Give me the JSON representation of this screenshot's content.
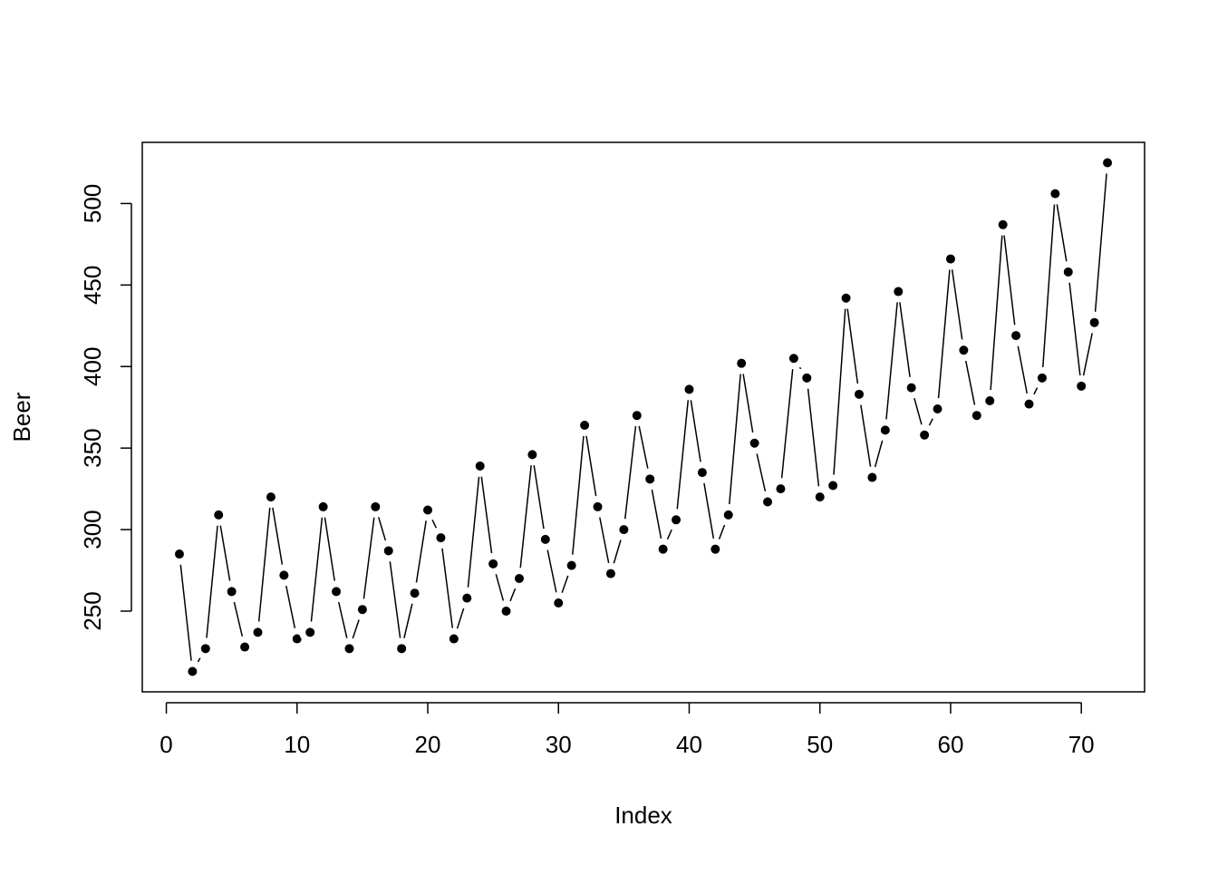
{
  "chart_data": {
    "type": "line",
    "markers": true,
    "color": "#000000",
    "x_label": "Index",
    "y_label": "Beer",
    "x": [
      1,
      2,
      3,
      4,
      5,
      6,
      7,
      8,
      9,
      10,
      11,
      12,
      13,
      14,
      15,
      16,
      17,
      18,
      19,
      20,
      21,
      22,
      23,
      24,
      25,
      26,
      27,
      28,
      29,
      30,
      31,
      32,
      33,
      34,
      35,
      36,
      37,
      38,
      39,
      40,
      41,
      42,
      43,
      44,
      45,
      46,
      47,
      48,
      49,
      50,
      51,
      52,
      53,
      54,
      55,
      56,
      57,
      58,
      59,
      60,
      61,
      62,
      63,
      64,
      65,
      66,
      67,
      68,
      69,
      70,
      71,
      72
    ],
    "values": [
      285,
      213,
      227,
      309,
      262,
      228,
      237,
      320,
      272,
      233,
      237,
      314,
      262,
      227,
      251,
      314,
      287,
      227,
      261,
      312,
      295,
      233,
      258,
      339,
      279,
      250,
      270,
      346,
      294,
      255,
      278,
      364,
      314,
      273,
      300,
      370,
      331,
      288,
      306,
      386,
      335,
      288,
      309,
      402,
      353,
      317,
      325,
      405,
      393,
      320,
      327,
      442,
      383,
      332,
      361,
      446,
      387,
      358,
      374,
      466,
      410,
      370,
      379,
      487,
      419,
      377,
      393,
      506,
      458,
      388,
      427,
      525
    ],
    "xlim": [
      -1.84,
      74.84
    ],
    "ylim": [
      200.5,
      537.5
    ],
    "xticks": [
      0,
      10,
      20,
      30,
      40,
      50,
      60,
      70
    ],
    "yticks": [
      250,
      300,
      350,
      400,
      450,
      500
    ]
  }
}
